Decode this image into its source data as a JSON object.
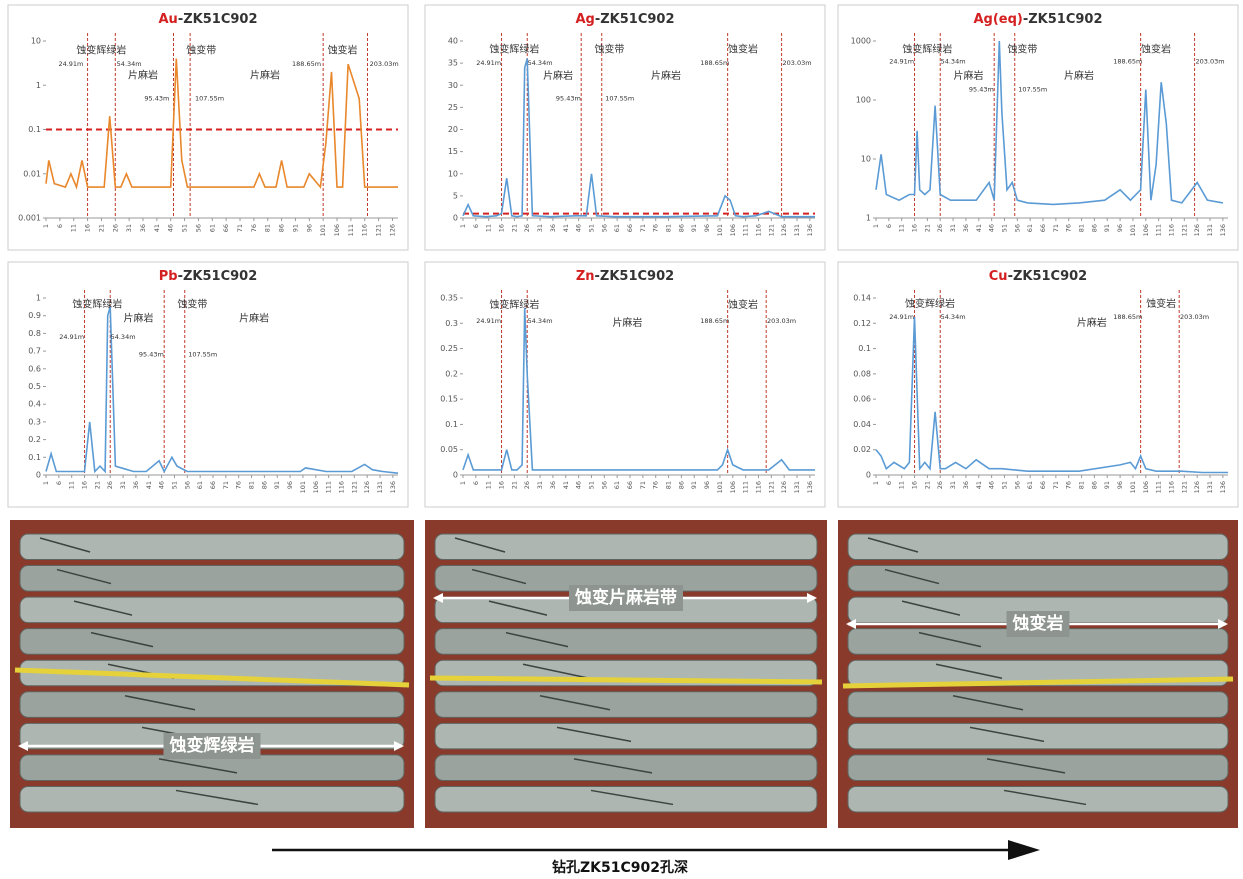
{
  "chart_data": [
    {
      "type": "line",
      "element": "Au",
      "title": "-ZK51C902",
      "color": "#e8872b",
      "log": true,
      "ylim": [
        0.001,
        10
      ],
      "yticks": [
        0.001,
        0.01,
        0.1,
        1,
        10
      ],
      "xlim": [
        1,
        128
      ],
      "xticks": [
        1,
        6,
        11,
        16,
        21,
        26,
        31,
        36,
        41,
        46,
        51,
        56,
        61,
        66,
        71,
        76,
        81,
        86,
        91,
        96,
        101,
        106,
        111,
        116,
        121,
        126
      ],
      "x": [
        1,
        2,
        4,
        8,
        10,
        12,
        14,
        16,
        22,
        24,
        26,
        28,
        30,
        32,
        34,
        46,
        48,
        50,
        52,
        54,
        56,
        70,
        76,
        78,
        80,
        84,
        86,
        88,
        94,
        96,
        100,
        102,
        104,
        106,
        108,
        110,
        114,
        116,
        118,
        120,
        128
      ],
      "values": [
        0.006,
        0.02,
        0.006,
        0.005,
        0.01,
        0.005,
        0.02,
        0.005,
        0.005,
        0.2,
        0.005,
        0.005,
        0.01,
        0.005,
        0.005,
        0.005,
        4,
        0.02,
        0.005,
        0.005,
        0.005,
        0.005,
        0.005,
        0.01,
        0.005,
        0.005,
        0.02,
        0.005,
        0.005,
        0.01,
        0.005,
        0.05,
        2,
        0.005,
        0.005,
        3,
        0.5,
        0.005,
        0.005,
        0.005,
        0.005
      ],
      "hlines": [
        0.1
      ],
      "vlines": [
        16,
        26,
        47,
        53,
        101,
        117
      ],
      "annotations": [
        {
          "text": "蚀变辉绿岩",
          "x": 21,
          "y": 6
        },
        {
          "text": "蚀变带",
          "x": 57,
          "y": 6
        },
        {
          "text": "片麻岩",
          "x": 36,
          "y": 1.6
        },
        {
          "text": "片麻岩",
          "x": 80,
          "y": 1.6
        },
        {
          "text": "蚀变岩",
          "x": 108,
          "y": 6
        },
        {
          "text": "24.91m",
          "x": 10,
          "y": 3
        },
        {
          "text": "54.34m",
          "x": 31,
          "y": 3
        },
        {
          "text": "95.43m",
          "x": 41,
          "y": 0.5
        },
        {
          "text": "107.55m",
          "x": 60,
          "y": 0.5
        },
        {
          "text": "188.65m",
          "x": 95,
          "y": 3
        },
        {
          "text": "203.03m",
          "x": 123,
          "y": 3
        }
      ]
    },
    {
      "type": "line",
      "element": "Ag",
      "title": "-ZK51C902",
      "color": "#5b9bd5",
      "log": false,
      "ylim": [
        0,
        40
      ],
      "yticks": [
        0,
        5,
        10,
        15,
        20,
        25,
        30,
        35,
        40
      ],
      "xlim": [
        1,
        138
      ],
      "xticks": [
        1,
        6,
        11,
        16,
        21,
        26,
        31,
        36,
        41,
        46,
        51,
        56,
        61,
        66,
        71,
        76,
        81,
        86,
        91,
        96,
        101,
        106,
        111,
        116,
        121,
        126,
        131,
        136
      ],
      "x": [
        1,
        3,
        5,
        10,
        14,
        16,
        18,
        20,
        22,
        24,
        25,
        26,
        28,
        35,
        45,
        49,
        51,
        53,
        60,
        80,
        100,
        103,
        105,
        107,
        110,
        115,
        120,
        125,
        130,
        138
      ],
      "values": [
        0.5,
        3,
        0.5,
        0.3,
        0.5,
        1,
        9,
        0.5,
        0.3,
        0.5,
        34,
        36,
        0.5,
        0.3,
        0.5,
        0.5,
        10,
        0.5,
        0.3,
        0.3,
        0.5,
        5,
        4,
        0.5,
        0.3,
        0.5,
        1.5,
        0.3,
        0.3,
        0.3
      ],
      "hlines": [
        1
      ],
      "vlines": [
        16,
        26,
        47,
        55,
        104,
        125
      ],
      "annotations": [
        {
          "text": "蚀变辉绿岩",
          "x": 21,
          "y": 38
        },
        {
          "text": "蚀变带",
          "x": 58,
          "y": 38
        },
        {
          "text": "片麻岩",
          "x": 38,
          "y": 32
        },
        {
          "text": "片麻岩",
          "x": 80,
          "y": 32
        },
        {
          "text": "蚀变岩",
          "x": 110,
          "y": 38
        },
        {
          "text": "24.91m",
          "x": 11,
          "y": 35
        },
        {
          "text": "54.34m",
          "x": 31,
          "y": 35
        },
        {
          "text": "95.43m",
          "x": 42,
          "y": 27
        },
        {
          "text": "107.55m",
          "x": 62,
          "y": 27
        },
        {
          "text": "188.65m",
          "x": 99,
          "y": 35
        },
        {
          "text": "203.03m",
          "x": 131,
          "y": 35
        }
      ]
    },
    {
      "type": "line",
      "element": "Ag(eq)",
      "title": "-ZK51C902",
      "color": "#5b9bd5",
      "log": true,
      "ylim": [
        1,
        1000
      ],
      "yticks": [
        1,
        10,
        100,
        1000
      ],
      "xlim": [
        1,
        138
      ],
      "xticks": [
        1,
        6,
        11,
        16,
        21,
        26,
        31,
        36,
        41,
        46,
        51,
        56,
        61,
        66,
        71,
        76,
        81,
        86,
        91,
        96,
        101,
        106,
        111,
        116,
        121,
        126,
        131,
        136
      ],
      "x": [
        1,
        3,
        5,
        10,
        14,
        16,
        17,
        18,
        20,
        22,
        24,
        26,
        30,
        35,
        40,
        45,
        47,
        49,
        50,
        52,
        54,
        56,
        60,
        70,
        80,
        90,
        96,
        100,
        104,
        106,
        108,
        110,
        112,
        114,
        116,
        120,
        126,
        130,
        136
      ],
      "values": [
        3,
        12,
        2.5,
        2,
        2.5,
        2.5,
        30,
        3,
        2.5,
        3,
        80,
        2.5,
        2,
        2,
        2,
        4,
        2,
        1000,
        60,
        3,
        4,
        2,
        1.8,
        1.7,
        1.8,
        2,
        3,
        2,
        3,
        150,
        2,
        8,
        200,
        40,
        2,
        1.8,
        4,
        2,
        1.8
      ],
      "vlines": [
        16,
        26,
        47,
        55,
        104,
        125
      ],
      "annotations": [
        {
          "text": "蚀变辉绿岩",
          "x": 21,
          "y": 700
        },
        {
          "text": "蚀变带",
          "x": 58,
          "y": 700
        },
        {
          "text": "片麻岩",
          "x": 37,
          "y": 250
        },
        {
          "text": "片麻岩",
          "x": 80,
          "y": 250
        },
        {
          "text": "蚀变岩",
          "x": 110,
          "y": 700
        },
        {
          "text": "24.91m",
          "x": 11,
          "y": 450
        },
        {
          "text": "54.34m",
          "x": 31,
          "y": 450
        },
        {
          "text": "95.43m",
          "x": 42,
          "y": 150
        },
        {
          "text": "107.55m",
          "x": 62,
          "y": 150
        },
        {
          "text": "188.65m",
          "x": 99,
          "y": 450
        },
        {
          "text": "203.03m",
          "x": 131,
          "y": 450
        }
      ]
    },
    {
      "type": "line",
      "element": "Pb",
      "title": "-ZK51C902",
      "color": "#5b9bd5",
      "log": false,
      "ylim": [
        0,
        1
      ],
      "yticks": [
        0,
        0.1,
        0.2,
        0.3,
        0.4,
        0.5,
        0.6,
        0.7,
        0.8,
        0.9,
        1
      ],
      "xlim": [
        1,
        138
      ],
      "xticks": [
        1,
        6,
        11,
        16,
        21,
        26,
        31,
        36,
        41,
        46,
        51,
        56,
        61,
        66,
        71,
        76,
        81,
        86,
        91,
        96,
        101,
        106,
        111,
        116,
        121,
        126,
        131,
        136
      ],
      "x": [
        1,
        3,
        5,
        10,
        14,
        16,
        18,
        20,
        22,
        24,
        25,
        26,
        28,
        35,
        40,
        45,
        47,
        50,
        52,
        56,
        70,
        90,
        100,
        102,
        110,
        120,
        125,
        128,
        132,
        138
      ],
      "values": [
        0.02,
        0.12,
        0.02,
        0.02,
        0.02,
        0.02,
        0.3,
        0.02,
        0.05,
        0.02,
        0.9,
        0.95,
        0.05,
        0.02,
        0.02,
        0.08,
        0.02,
        0.1,
        0.05,
        0.02,
        0.02,
        0.02,
        0.02,
        0.04,
        0.02,
        0.02,
        0.06,
        0.03,
        0.02,
        0.01
      ],
      "vlines": [
        16,
        26,
        47,
        55
      ],
      "annotations": [
        {
          "text": "蚀变辉绿岩",
          "x": 21,
          "y": 0.96
        },
        {
          "text": "蚀变带",
          "x": 58,
          "y": 0.96
        },
        {
          "text": "片麻岩",
          "x": 37,
          "y": 0.88
        },
        {
          "text": "片麻岩",
          "x": 82,
          "y": 0.88
        },
        {
          "text": "24.91m",
          "x": 11,
          "y": 0.78
        },
        {
          "text": "54.34m",
          "x": 31,
          "y": 0.78
        },
        {
          "text": "95.43m",
          "x": 42,
          "y": 0.68
        },
        {
          "text": "107.55m",
          "x": 62,
          "y": 0.68
        }
      ]
    },
    {
      "type": "line",
      "element": "Zn",
      "title": "-ZK51C902",
      "color": "#5b9bd5",
      "log": false,
      "ylim": [
        0,
        0.35
      ],
      "yticks": [
        0,
        0.05,
        0.1,
        0.15,
        0.2,
        0.25,
        0.3,
        0.35
      ],
      "xlim": [
        1,
        138
      ],
      "xticks": [
        1,
        6,
        11,
        16,
        21,
        26,
        31,
        36,
        41,
        46,
        51,
        56,
        61,
        66,
        71,
        76,
        81,
        86,
        91,
        96,
        101,
        106,
        111,
        116,
        121,
        126,
        131,
        136
      ],
      "x": [
        1,
        3,
        5,
        10,
        14,
        16,
        18,
        20,
        22,
        24,
        25,
        26,
        28,
        35,
        45,
        60,
        80,
        100,
        102,
        104,
        106,
        110,
        120,
        125,
        128,
        132,
        138
      ],
      "values": [
        0.01,
        0.04,
        0.01,
        0.01,
        0.01,
        0.01,
        0.05,
        0.01,
        0.01,
        0.02,
        0.33,
        0.2,
        0.01,
        0.01,
        0.01,
        0.01,
        0.01,
        0.01,
        0.02,
        0.05,
        0.02,
        0.01,
        0.01,
        0.03,
        0.01,
        0.01,
        0.01
      ],
      "vlines": [
        16,
        26,
        104,
        119
      ],
      "annotations": [
        {
          "text": "蚀变辉绿岩",
          "x": 21,
          "y": 0.335
        },
        {
          "text": "片麻岩",
          "x": 65,
          "y": 0.3
        },
        {
          "text": "蚀变岩",
          "x": 110,
          "y": 0.335
        },
        {
          "text": "24.91m",
          "x": 11,
          "y": 0.305
        },
        {
          "text": "54.34m",
          "x": 31,
          "y": 0.305
        },
        {
          "text": "188.65m",
          "x": 99,
          "y": 0.305
        },
        {
          "text": "203.03m",
          "x": 125,
          "y": 0.305
        }
      ]
    },
    {
      "type": "line",
      "element": "Cu",
      "title": "-ZK51C902",
      "color": "#5b9bd5",
      "log": false,
      "ylim": [
        0,
        0.14
      ],
      "yticks": [
        0,
        0.02,
        0.04,
        0.06,
        0.08,
        0.1,
        0.12,
        0.14
      ],
      "xlim": [
        1,
        138
      ],
      "xticks": [
        1,
        6,
        11,
        16,
        21,
        26,
        31,
        36,
        41,
        46,
        51,
        56,
        61,
        66,
        71,
        76,
        81,
        86,
        91,
        96,
        101,
        106,
        111,
        116,
        121,
        126,
        131,
        136
      ],
      "x": [
        1,
        3,
        5,
        8,
        12,
        14,
        16,
        18,
        20,
        22,
        24,
        26,
        28,
        32,
        36,
        40,
        45,
        50,
        60,
        80,
        96,
        100,
        102,
        104,
        106,
        110,
        120,
        128,
        138
      ],
      "values": [
        0.02,
        0.015,
        0.005,
        0.01,
        0.005,
        0.01,
        0.125,
        0.005,
        0.01,
        0.005,
        0.05,
        0.005,
        0.005,
        0.01,
        0.005,
        0.012,
        0.005,
        0.005,
        0.003,
        0.003,
        0.008,
        0.01,
        0.005,
        0.015,
        0.005,
        0.003,
        0.003,
        0.002,
        0.002
      ],
      "vlines": [
        16,
        26,
        104,
        119
      ],
      "annotations": [
        {
          "text": "蚀变辉绿岩",
          "x": 22,
          "y": 0.135
        },
        {
          "text": "片麻岩",
          "x": 85,
          "y": 0.12
        },
        {
          "text": "蚀变岩",
          "x": 112,
          "y": 0.135
        },
        {
          "text": "24.91m",
          "x": 11,
          "y": 0.125
        },
        {
          "text": "54.34m",
          "x": 31,
          "y": 0.125
        },
        {
          "text": "188.65m",
          "x": 99,
          "y": 0.125
        },
        {
          "text": "203.03m",
          "x": 125,
          "y": 0.125
        }
      ]
    }
  ],
  "photos": [
    {
      "label": "蚀变辉绿岩"
    },
    {
      "label": "蚀变片麻岩带"
    },
    {
      "label": "蚀变岩"
    }
  ],
  "caption": "钻孔ZK51C902孔深"
}
